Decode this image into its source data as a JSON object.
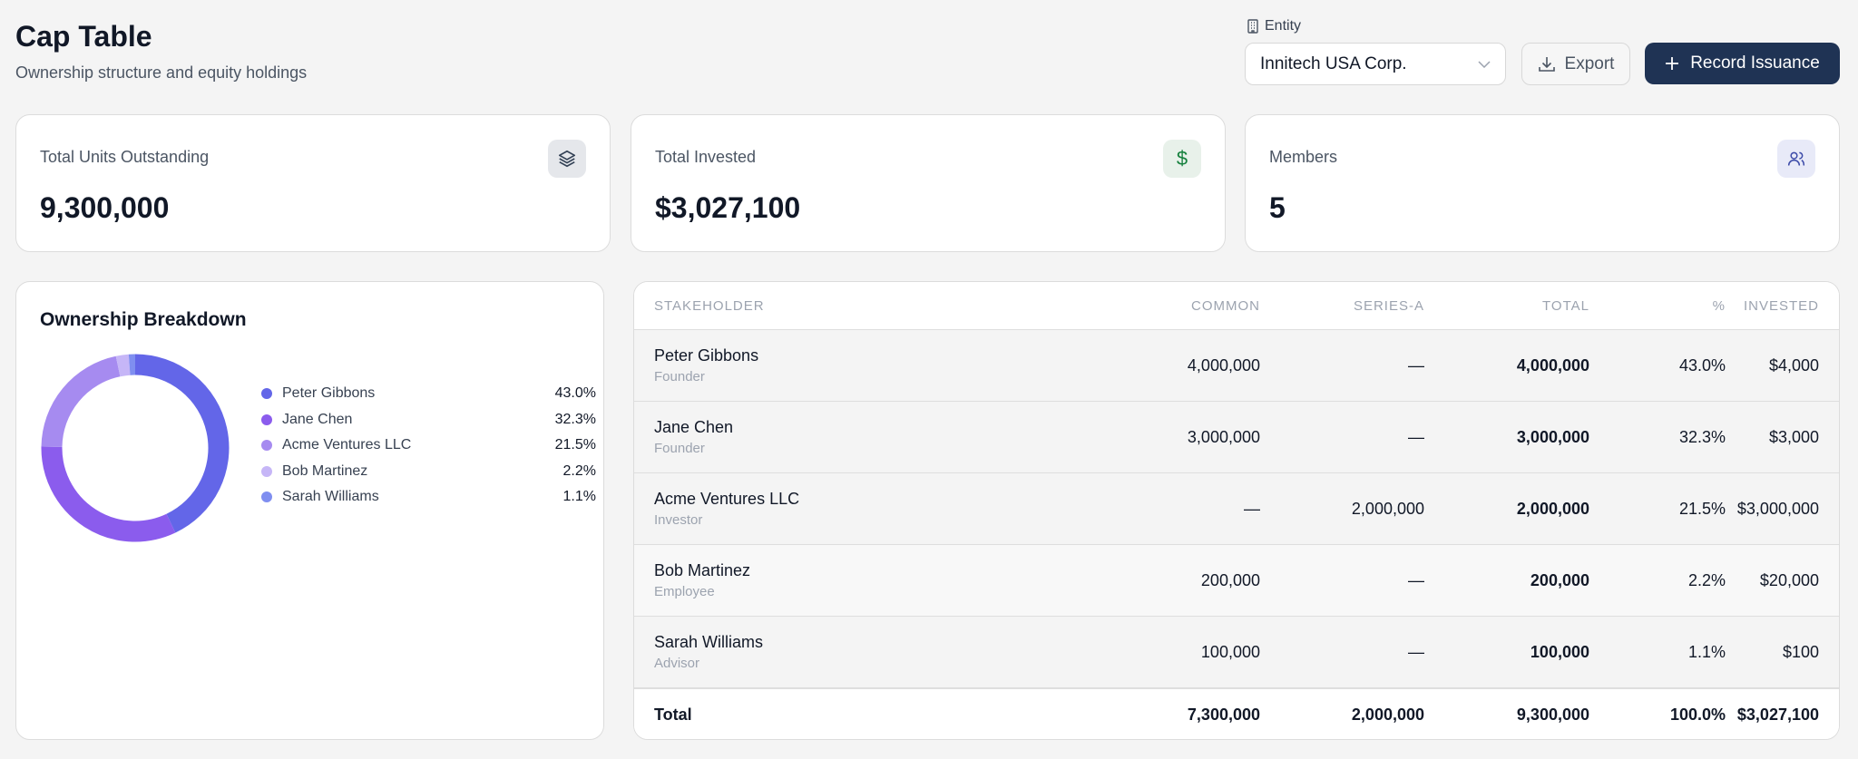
{
  "header": {
    "title": "Cap Table",
    "subtitle": "Ownership structure and equity holdings",
    "entity_label": "Entity",
    "entity_value": "Innitech USA Corp.",
    "export_label": "Export",
    "record_label": "Record Issuance"
  },
  "stats": [
    {
      "label": "Total Units Outstanding",
      "value": "9,300,000",
      "icon": "layers-icon",
      "icon_color": "#334155",
      "icon_bg": "#e5e7eb"
    },
    {
      "label": "Total Invested",
      "value": "$3,027,100",
      "icon": "dollar-icon",
      "icon_color": "#15803d",
      "icon_bg": "#e8f1ea"
    },
    {
      "label": "Members",
      "value": "5",
      "icon": "users-icon",
      "icon_color": "#3b4aa8",
      "icon_bg": "#e8eaf8"
    }
  ],
  "breakdown": {
    "title": "Ownership Breakdown"
  },
  "chart_data": {
    "type": "pie",
    "subtype": "donut",
    "title": "Ownership Breakdown",
    "legend": "right",
    "categories": [
      "Peter Gibbons",
      "Jane Chen",
      "Acme Ventures LLC",
      "Bob Martinez",
      "Sarah Williams"
    ],
    "values": [
      43.0,
      32.3,
      21.5,
      2.2,
      1.1
    ],
    "labels": [
      "43.0%",
      "32.3%",
      "21.5%",
      "2.2%",
      "1.1%"
    ],
    "colors": [
      "#6366e8",
      "#8b5ced",
      "#a68bf0",
      "#c6b6f7",
      "#7f8ef0"
    ]
  },
  "table": {
    "columns": [
      "STAKEHOLDER",
      "COMMON",
      "SERIES-A",
      "TOTAL",
      "%",
      "INVESTED"
    ],
    "rows": [
      {
        "name": "Peter Gibbons",
        "role": "Founder",
        "common": "4,000,000",
        "series_a": "—",
        "total": "4,000,000",
        "pct": "43.0%",
        "invested": "$4,000"
      },
      {
        "name": "Jane Chen",
        "role": "Founder",
        "common": "3,000,000",
        "series_a": "—",
        "total": "3,000,000",
        "pct": "32.3%",
        "invested": "$3,000"
      },
      {
        "name": "Acme Ventures LLC",
        "role": "Investor",
        "common": "—",
        "series_a": "2,000,000",
        "total": "2,000,000",
        "pct": "21.5%",
        "invested": "$3,000,000"
      },
      {
        "name": "Bob Martinez",
        "role": "Employee",
        "common": "200,000",
        "series_a": "—",
        "total": "200,000",
        "pct": "2.2%",
        "invested": "$20,000"
      },
      {
        "name": "Sarah Williams",
        "role": "Advisor",
        "common": "100,000",
        "series_a": "—",
        "total": "100,000",
        "pct": "1.1%",
        "invested": "$100"
      }
    ],
    "totals": {
      "label": "Total",
      "common": "7,300,000",
      "series_a": "2,000,000",
      "total": "9,300,000",
      "pct": "100.0%",
      "invested": "$3,027,100"
    }
  }
}
